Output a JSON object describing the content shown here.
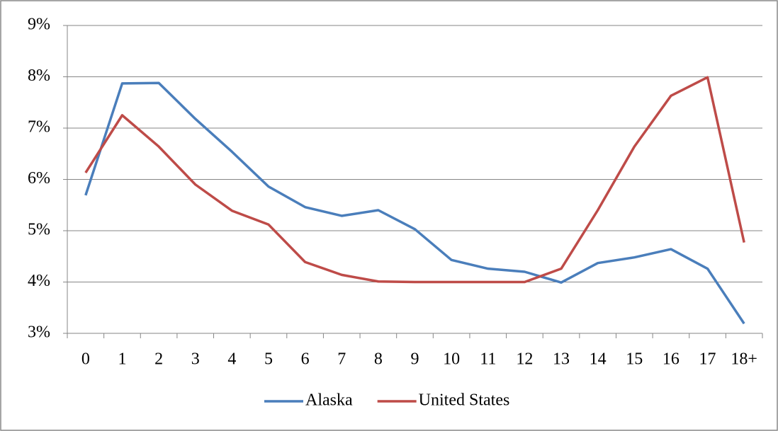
{
  "chart_data": {
    "type": "line",
    "categories": [
      "0",
      "1",
      "2",
      "3",
      "4",
      "5",
      "6",
      "7",
      "8",
      "9",
      "10",
      "11",
      "12",
      "13",
      "14",
      "15",
      "16",
      "17",
      "18+"
    ],
    "series": [
      {
        "name": "Alaska",
        "color": "#4a7ebb",
        "values": [
          5.69,
          7.87,
          7.88,
          7.18,
          6.54,
          5.86,
          5.46,
          5.29,
          5.4,
          5.03,
          4.43,
          4.26,
          4.2,
          3.99,
          4.37,
          4.48,
          4.64,
          4.26,
          3.19
        ]
      },
      {
        "name": "United States",
        "color": "#be4b48",
        "values": [
          6.13,
          7.25,
          6.64,
          5.9,
          5.39,
          5.12,
          4.39,
          4.14,
          4.01,
          4.0,
          4.0,
          4.0,
          4.0,
          4.26,
          5.4,
          6.64,
          7.63,
          7.99,
          4.77
        ]
      }
    ],
    "ylim": [
      3,
      9
    ],
    "yticks": [
      {
        "value": 3,
        "label": "3%"
      },
      {
        "value": 4,
        "label": "4%"
      },
      {
        "value": 5,
        "label": "5%"
      },
      {
        "value": 6,
        "label": "6%"
      },
      {
        "value": 7,
        "label": "7%"
      },
      {
        "value": 8,
        "label": "8%"
      },
      {
        "value": 9,
        "label": "9%"
      }
    ],
    "grid": true,
    "legend": "bottom"
  }
}
